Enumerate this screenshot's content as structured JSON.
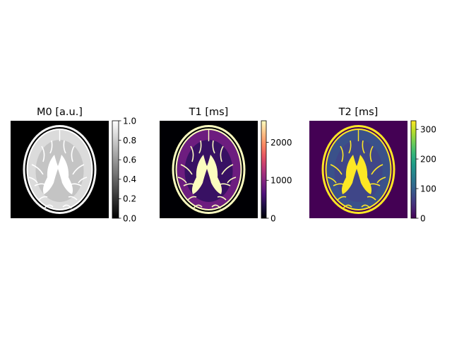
{
  "panels": [
    {
      "title": "M0 [a.u.]",
      "colormap": "gray",
      "colorbar": {
        "min": 0.0,
        "max": 1.0,
        "ticks": [
          "0.0",
          "0.2",
          "0.4",
          "0.6",
          "0.8",
          "1.0"
        ],
        "tick_values": [
          0.0,
          0.2,
          0.4,
          0.6,
          0.8,
          1.0
        ]
      },
      "tissue_values": {
        "background": 0.0,
        "scalp": 0.97,
        "skull": 0.0,
        "csf": 1.0,
        "gray_matter": 0.86,
        "white_matter": 0.77
      }
    },
    {
      "title": "T1 [ms]",
      "colormap": "magma",
      "colorbar": {
        "min": 0,
        "max": 2569,
        "ticks": [
          "0",
          "1000",
          "2000"
        ],
        "tick_values": [
          0,
          1000,
          2000
        ]
      },
      "tissue_values": {
        "background": 0,
        "scalp": 2569,
        "skull": 0,
        "csf": 2569,
        "gray_matter": 833,
        "white_matter": 500
      }
    },
    {
      "title": "T2 [ms]",
      "colormap": "viridis",
      "colorbar": {
        "min": 0,
        "max": 329,
        "ticks": [
          "0",
          "100",
          "200",
          "300"
        ],
        "tick_values": [
          0,
          100,
          200,
          300
        ]
      },
      "tissue_values": {
        "background": 0,
        "scalp": 329,
        "skull": 0,
        "csf": 329,
        "gray_matter": 83,
        "white_matter": 70
      }
    }
  ],
  "colors": {
    "gray": [
      "#000000",
      "#ffffff"
    ],
    "magma": [
      "#000004",
      "#1c1044",
      "#4f127b",
      "#812581",
      "#b5367a",
      "#e55064",
      "#fb8761",
      "#fec287",
      "#fcfdbf"
    ],
    "viridis": [
      "#440154",
      "#482878",
      "#3e4989",
      "#31688e",
      "#26828e",
      "#1f9e89",
      "#35b779",
      "#6ece58",
      "#b5de2b",
      "#fde725"
    ]
  }
}
